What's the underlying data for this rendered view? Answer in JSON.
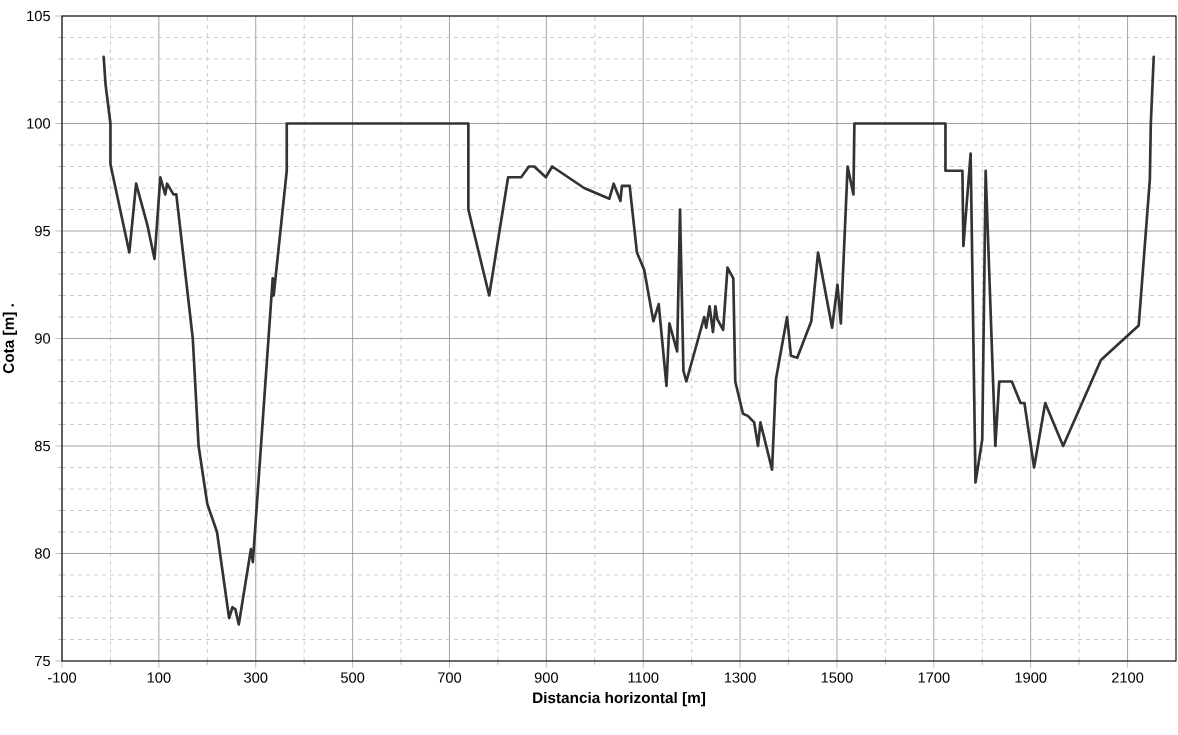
{
  "chart_data": {
    "type": "line",
    "xlabel": "Distancia horizontal [m]",
    "ylabel": "Cota [m]   .",
    "xlim": [
      -100,
      2200
    ],
    "ylim": [
      75,
      105
    ],
    "xticks": [
      -100,
      100,
      300,
      500,
      700,
      900,
      1100,
      1300,
      1500,
      1700,
      1900,
      2100
    ],
    "yticks": [
      75,
      80,
      85,
      90,
      95,
      100,
      105
    ],
    "grid": true,
    "marker": "none",
    "line_style": "solid",
    "series": [
      {
        "color": "#333333",
        "x": [
          -14,
          -10,
          0,
          0,
          39,
          53,
          76,
          91,
          103,
          113,
          117,
          130,
          136,
          170,
          182,
          200,
          220,
          245,
          252,
          258,
          265,
          290,
          294,
          335,
          337,
          364,
          364,
          739,
          739,
          782,
          821,
          848,
          864,
          875,
          899,
          912,
          978,
          1030,
          1039,
          1053,
          1056,
          1072,
          1087,
          1102,
          1121,
          1132,
          1148,
          1154,
          1170,
          1176,
          1183,
          1189,
          1226,
          1230,
          1237,
          1244,
          1249,
          1253,
          1265,
          1274,
          1286,
          1290,
          1306,
          1316,
          1329,
          1337,
          1342,
          1366,
          1374,
          1397,
          1405,
          1418,
          1447,
          1461,
          1490,
          1501,
          1508,
          1522,
          1534,
          1536,
          1724,
          1724,
          1759,
          1761,
          1776,
          1786,
          1800,
          1807,
          1827,
          1835,
          1861,
          1879,
          1887,
          1907,
          1930,
          1967,
          2045,
          2123,
          2146,
          2148,
          2154
        ],
        "values": [
          103.1,
          101.8,
          100,
          98.1,
          94.0,
          97.2,
          95.3,
          93.7,
          97.5,
          96.7,
          97.2,
          96.7,
          96.7,
          90.0,
          85.0,
          82.3,
          81.0,
          77.0,
          77.5,
          77.4,
          76.7,
          80.2,
          79.6,
          92.8,
          92.0,
          97.8,
          100,
          100,
          96.0,
          92.0,
          97.5,
          97.5,
          98.0,
          98.0,
          97.5,
          98.0,
          97.0,
          96.5,
          97.2,
          96.4,
          97.1,
          97.1,
          94.0,
          93.2,
          90.8,
          91.6,
          87.8,
          90.7,
          89.4,
          96.0,
          88.5,
          88.0,
          91.0,
          90.5,
          91.5,
          90.3,
          91.5,
          90.9,
          90.4,
          93.3,
          92.8,
          88.0,
          86.5,
          86.4,
          86.1,
          85.0,
          86.1,
          83.9,
          88.1,
          91.0,
          89.2,
          89.1,
          90.8,
          94.0,
          90.5,
          92.5,
          90.7,
          98.0,
          96.7,
          100,
          100,
          97.8,
          97.8,
          94.3,
          98.6,
          83.3,
          85.3,
          97.8,
          85.0,
          88.0,
          88.0,
          87.0,
          87.0,
          84.0,
          87.0,
          85.0,
          89.0,
          90.6,
          97.4,
          100,
          103.1
        ]
      }
    ]
  }
}
